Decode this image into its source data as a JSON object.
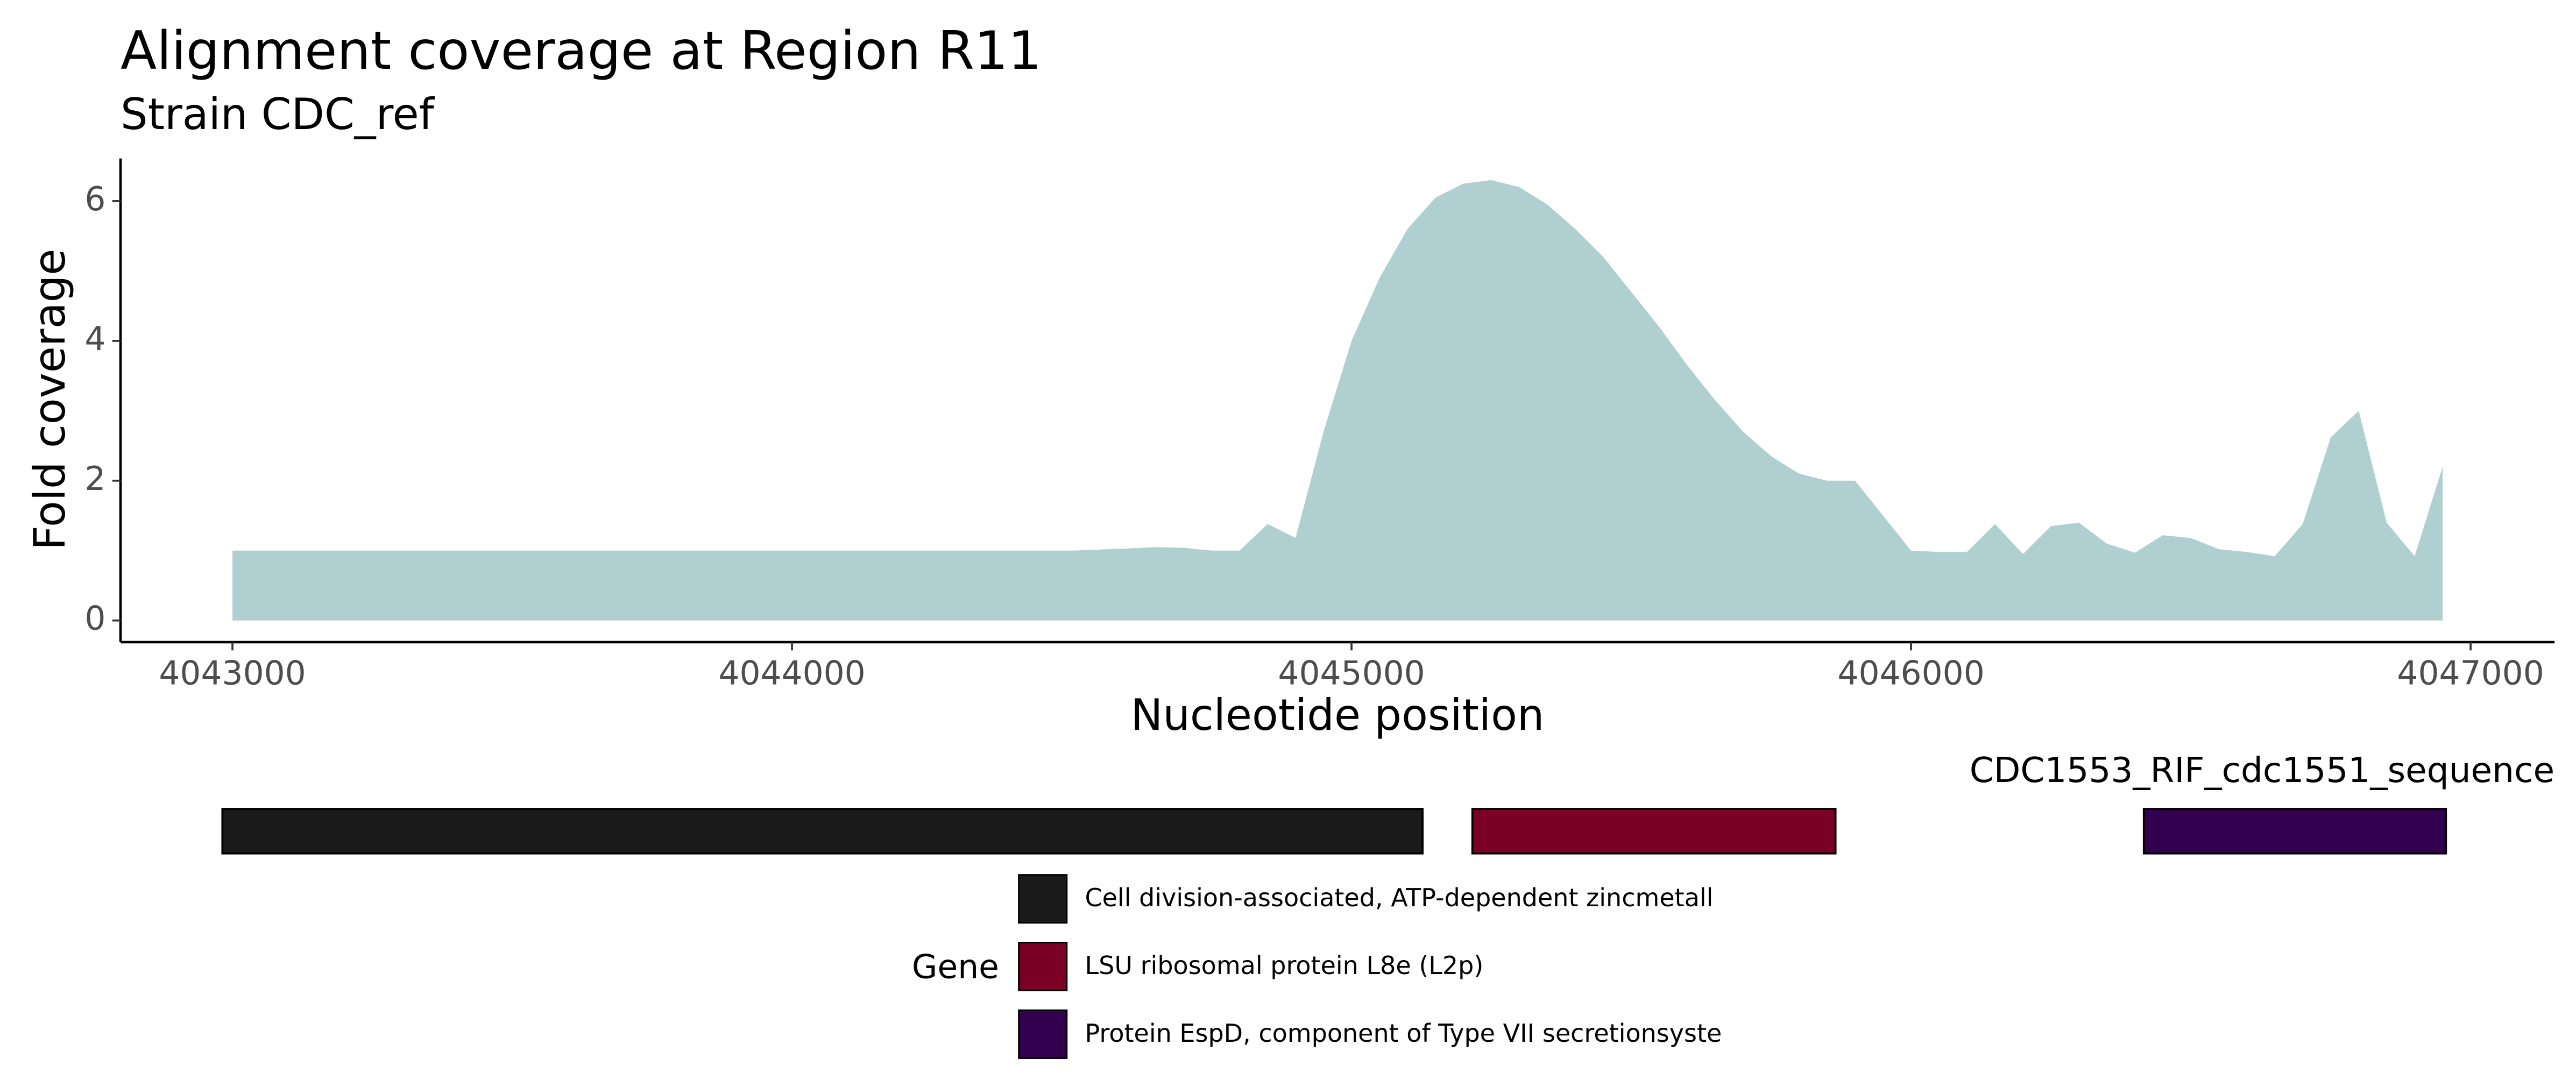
{
  "chart_data": {
    "type": "area",
    "title": "Alignment coverage at Region R11",
    "subtitle": "Strain CDC_ref",
    "x_label": "Nucleotide position",
    "y_label": "Fold coverage",
    "color": "#b0cfd1",
    "x": [
      4043000,
      4043500,
      4044000,
      4044500,
      4044600,
      4044650,
      4044700,
      4044750,
      4044800,
      4044850,
      4044900,
      4044950,
      4045000,
      4045050,
      4045100,
      4045150,
      4045200,
      4045250,
      4045300,
      4045350,
      4045400,
      4045450,
      4045500,
      4045550,
      4045600,
      4045650,
      4045700,
      4045750,
      4045800,
      4045850,
      4045900,
      4045950,
      4046000,
      4046050,
      4046100,
      4046150,
      4046200,
      4046250,
      4046300,
      4046350,
      4046400,
      4046450,
      4046500,
      4046550,
      4046600,
      4046650,
      4046700,
      4046750,
      4046800,
      4046850,
      4046900,
      4046950
    ],
    "values": [
      1.0,
      1.0,
      1.0,
      1.0,
      1.03,
      1.05,
      1.04,
      1.0,
      1.0,
      1.38,
      1.18,
      2.7,
      4.0,
      4.9,
      5.6,
      6.05,
      6.25,
      6.3,
      6.2,
      5.95,
      5.6,
      5.2,
      4.7,
      4.2,
      3.65,
      3.15,
      2.7,
      2.35,
      2.1,
      2.0,
      2.0,
      1.5,
      1.0,
      0.98,
      0.98,
      1.38,
      0.95,
      1.35,
      1.4,
      1.1,
      0.97,
      1.22,
      1.18,
      1.02,
      0.98,
      0.92,
      1.38,
      2.62,
      3.0,
      1.4,
      0.92,
      2.2
    ],
    "xlim": [
      4042800,
      4047150
    ],
    "xticks": [
      4043000,
      4044000,
      4045000,
      4046000,
      4047000
    ],
    "ylim": [
      -0.31,
      6.61
    ],
    "yticks": [
      0,
      2,
      4,
      6
    ],
    "grid": false,
    "genes": {
      "track_label": "CDC1553_RIF_cdc1551_sequence",
      "legend_title": "Gene",
      "items": [
        {
          "name": "Cell division-associated, ATP-dependent zincmetall",
          "color": "#1a1a1a",
          "start": 4042982,
          "end": 4045127
        },
        {
          "name": "LSU ribosomal protein L8e (L2p)",
          "color": "#7a0025",
          "start": 4045216,
          "end": 4045865
        },
        {
          "name": "Protein EspD, component of Type VII secretionsyste",
          "color": "#32004f",
          "start": 4046416,
          "end": 4046956
        }
      ]
    }
  }
}
